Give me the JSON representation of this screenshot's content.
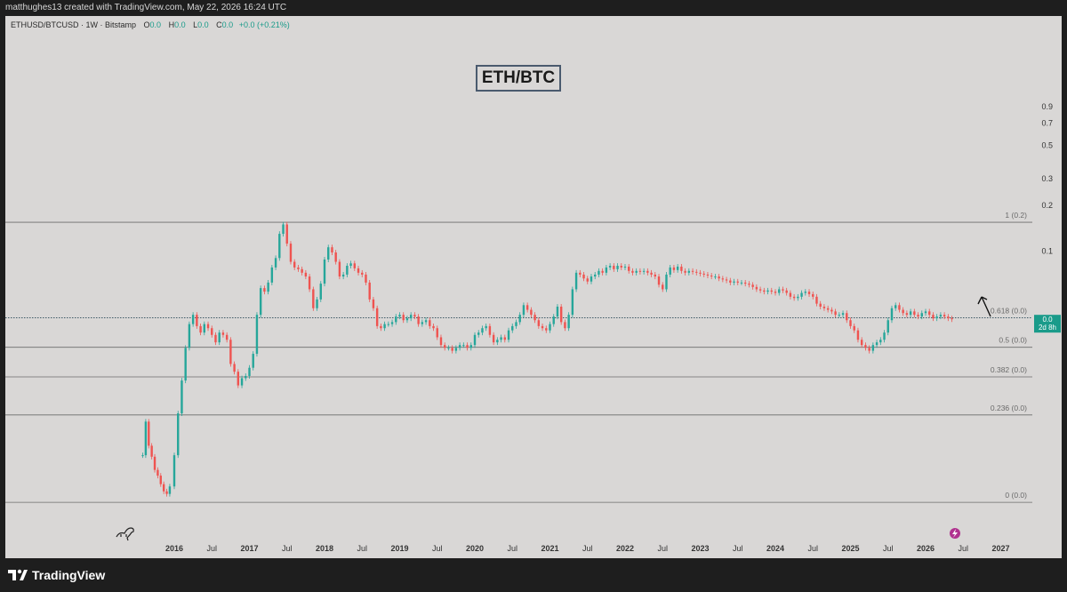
{
  "header": {
    "attribution": "matthughes13 created with TradingView.com, May 22, 2026 16:24 UTC"
  },
  "legend": {
    "symbol": "ETHUSD/BTCUSD · 1W · Bitstamp",
    "o_label": "O",
    "o_value": "0.0",
    "h_label": "H",
    "h_value": "0.0",
    "l_label": "L",
    "l_value": "0.0",
    "c_label": "C",
    "c_value": "0.0",
    "change": "+0.0 (+0.21%)"
  },
  "title_box": {
    "text": "ETH/BTC"
  },
  "footer": {
    "brand": "TradingView"
  },
  "icons": {
    "logo": "tradingview-logo-icon",
    "dino": "dinosaur-icon",
    "bolt": "lightning-icon",
    "arrow": "hand-drawn-arrow-icon"
  },
  "colors": {
    "background": "#d9d7d6",
    "up": "#26a69a",
    "down": "#ef5350",
    "fib_line": "#6b6b6b",
    "price_badge": "#1a9b8a",
    "frame": "#1e1e1e"
  },
  "chart_data": {
    "type": "candlestick",
    "title": "ETH/BTC",
    "xlabel": "",
    "ylabel": "",
    "y_scale": "log",
    "x_tick_labels": [
      "2016",
      "Jul",
      "2017",
      "Jul",
      "2018",
      "Jul",
      "2019",
      "Jul",
      "2020",
      "Jul",
      "2021",
      "Jul",
      "2022",
      "Jul",
      "2023",
      "Jul",
      "2024",
      "Jul",
      "2025",
      "Jul",
      "2026",
      "Jul",
      "2027"
    ],
    "x_ticks": [
      2016.0,
      2016.5,
      2017.0,
      2017.5,
      2018.0,
      2018.5,
      2019.0,
      2019.5,
      2020.0,
      2020.5,
      2021.0,
      2021.5,
      2022.0,
      2022.5,
      2023.0,
      2023.5,
      2024.0,
      2024.5,
      2025.0,
      2025.5,
      2026.0,
      2026.5,
      2027.0
    ],
    "y_tick_labels": [
      "0.9",
      "0.7",
      "0.5",
      "0.3",
      "0.2",
      "0.1"
    ],
    "y_ticks": [
      0.9,
      0.7,
      0.5,
      0.3,
      0.2,
      0.1
    ],
    "fib_levels": [
      {
        "label": "1 (0.2)",
        "value": 0.155
      },
      {
        "label": "0.618 (0.0)",
        "value": 0.0363
      },
      {
        "label": "0.5 (0.0)",
        "value": 0.0232
      },
      {
        "label": "0.382 (0.0)",
        "value": 0.0148
      },
      {
        "label": "0.236 (0.0)",
        "value": 0.0083
      },
      {
        "label": "0 (0.0)",
        "value": 0.0022
      }
    ],
    "last_price": {
      "label": "0.0",
      "countdown": "2d 8h",
      "value": 0.0355
    },
    "series": [
      {
        "name": "ETHUSD/BTCUSD",
        "points": [
          [
            2015.58,
            0.0045
          ],
          [
            2015.62,
            0.0075
          ],
          [
            2015.66,
            0.0052
          ],
          [
            2015.7,
            0.0044
          ],
          [
            2015.74,
            0.0036
          ],
          [
            2015.78,
            0.0033
          ],
          [
            2015.82,
            0.0029
          ],
          [
            2015.86,
            0.0026
          ],
          [
            2015.9,
            0.0025
          ],
          [
            2015.94,
            0.0028
          ],
          [
            2016.0,
            0.0045
          ],
          [
            2016.05,
            0.0085
          ],
          [
            2016.1,
            0.014
          ],
          [
            2016.15,
            0.023
          ],
          [
            2016.2,
            0.033
          ],
          [
            2016.25,
            0.038
          ],
          [
            2016.3,
            0.032
          ],
          [
            2016.35,
            0.029
          ],
          [
            2016.4,
            0.033
          ],
          [
            2016.45,
            0.031
          ],
          [
            2016.5,
            0.028
          ],
          [
            2016.55,
            0.025
          ],
          [
            2016.6,
            0.029
          ],
          [
            2016.65,
            0.028
          ],
          [
            2016.7,
            0.026
          ],
          [
            2016.75,
            0.018
          ],
          [
            2016.8,
            0.016
          ],
          [
            2016.85,
            0.013
          ],
          [
            2016.9,
            0.0145
          ],
          [
            2016.95,
            0.015
          ],
          [
            2017.0,
            0.017
          ],
          [
            2017.05,
            0.021
          ],
          [
            2017.1,
            0.038
          ],
          [
            2017.15,
            0.057
          ],
          [
            2017.2,
            0.054
          ],
          [
            2017.25,
            0.062
          ],
          [
            2017.3,
            0.078
          ],
          [
            2017.35,
            0.09
          ],
          [
            2017.4,
            0.13
          ],
          [
            2017.45,
            0.15
          ],
          [
            2017.5,
            0.112
          ],
          [
            2017.55,
            0.085
          ],
          [
            2017.6,
            0.078
          ],
          [
            2017.65,
            0.076
          ],
          [
            2017.7,
            0.072
          ],
          [
            2017.75,
            0.068
          ],
          [
            2017.8,
            0.056
          ],
          [
            2017.85,
            0.042
          ],
          [
            2017.9,
            0.048
          ],
          [
            2017.95,
            0.061
          ],
          [
            2018.0,
            0.088
          ],
          [
            2018.05,
            0.106
          ],
          [
            2018.1,
            0.098
          ],
          [
            2018.15,
            0.085
          ],
          [
            2018.2,
            0.068
          ],
          [
            2018.25,
            0.07
          ],
          [
            2018.3,
            0.08
          ],
          [
            2018.35,
            0.083
          ],
          [
            2018.4,
            0.077
          ],
          [
            2018.45,
            0.072
          ],
          [
            2018.5,
            0.07
          ],
          [
            2018.55,
            0.062
          ],
          [
            2018.6,
            0.048
          ],
          [
            2018.65,
            0.042
          ],
          [
            2018.7,
            0.032
          ],
          [
            2018.75,
            0.031
          ],
          [
            2018.8,
            0.033
          ],
          [
            2018.85,
            0.033
          ],
          [
            2018.9,
            0.034
          ],
          [
            2018.95,
            0.037
          ],
          [
            2019.0,
            0.038
          ],
          [
            2019.05,
            0.035
          ],
          [
            2019.1,
            0.036
          ],
          [
            2019.15,
            0.038
          ],
          [
            2019.2,
            0.037
          ],
          [
            2019.25,
            0.033
          ],
          [
            2019.3,
            0.034
          ],
          [
            2019.35,
            0.035
          ],
          [
            2019.4,
            0.032
          ],
          [
            2019.45,
            0.031
          ],
          [
            2019.5,
            0.027
          ],
          [
            2019.55,
            0.024
          ],
          [
            2019.6,
            0.023
          ],
          [
            2019.65,
            0.023
          ],
          [
            2019.7,
            0.022
          ],
          [
            2019.75,
            0.023
          ],
          [
            2019.8,
            0.024
          ],
          [
            2019.85,
            0.024
          ],
          [
            2019.9,
            0.023
          ],
          [
            2019.95,
            0.024
          ],
          [
            2020.0,
            0.028
          ],
          [
            2020.05,
            0.029
          ],
          [
            2020.1,
            0.031
          ],
          [
            2020.15,
            0.032
          ],
          [
            2020.2,
            0.028
          ],
          [
            2020.25,
            0.025
          ],
          [
            2020.3,
            0.026
          ],
          [
            2020.35,
            0.027
          ],
          [
            2020.4,
            0.026
          ],
          [
            2020.45,
            0.03
          ],
          [
            2020.5,
            0.032
          ],
          [
            2020.55,
            0.034
          ],
          [
            2020.6,
            0.038
          ],
          [
            2020.65,
            0.044
          ],
          [
            2020.7,
            0.041
          ],
          [
            2020.75,
            0.038
          ],
          [
            2020.8,
            0.035
          ],
          [
            2020.85,
            0.032
          ],
          [
            2020.9,
            0.031
          ],
          [
            2020.95,
            0.03
          ],
          [
            2021.0,
            0.033
          ],
          [
            2021.05,
            0.037
          ],
          [
            2021.1,
            0.043
          ],
          [
            2021.15,
            0.034
          ],
          [
            2021.2,
            0.031
          ],
          [
            2021.25,
            0.038
          ],
          [
            2021.3,
            0.056
          ],
          [
            2021.35,
            0.072
          ],
          [
            2021.4,
            0.07
          ],
          [
            2021.45,
            0.066
          ],
          [
            2021.5,
            0.063
          ],
          [
            2021.55,
            0.068
          ],
          [
            2021.6,
            0.07
          ],
          [
            2021.65,
            0.074
          ],
          [
            2021.7,
            0.072
          ],
          [
            2021.75,
            0.078
          ],
          [
            2021.8,
            0.08
          ],
          [
            2021.85,
            0.076
          ],
          [
            2021.9,
            0.08
          ],
          [
            2021.95,
            0.078
          ],
          [
            2022.0,
            0.079
          ],
          [
            2022.05,
            0.074
          ],
          [
            2022.1,
            0.072
          ],
          [
            2022.15,
            0.074
          ],
          [
            2022.2,
            0.073
          ],
          [
            2022.25,
            0.074
          ],
          [
            2022.3,
            0.072
          ],
          [
            2022.35,
            0.07
          ],
          [
            2022.4,
            0.068
          ],
          [
            2022.45,
            0.06
          ],
          [
            2022.5,
            0.056
          ],
          [
            2022.55,
            0.07
          ],
          [
            2022.6,
            0.078
          ],
          [
            2022.65,
            0.075
          ],
          [
            2022.7,
            0.079
          ],
          [
            2022.75,
            0.074
          ],
          [
            2022.8,
            0.072
          ],
          [
            2022.85,
            0.074
          ],
          [
            2022.9,
            0.073
          ],
          [
            2022.95,
            0.072
          ],
          [
            2023.0,
            0.071
          ],
          [
            2023.05,
            0.07
          ],
          [
            2023.1,
            0.069
          ],
          [
            2023.15,
            0.068
          ],
          [
            2023.2,
            0.068
          ],
          [
            2023.25,
            0.066
          ],
          [
            2023.3,
            0.065
          ],
          [
            2023.35,
            0.064
          ],
          [
            2023.4,
            0.062
          ],
          [
            2023.45,
            0.063
          ],
          [
            2023.5,
            0.062
          ],
          [
            2023.55,
            0.062
          ],
          [
            2023.6,
            0.061
          ],
          [
            2023.65,
            0.06
          ],
          [
            2023.7,
            0.058
          ],
          [
            2023.75,
            0.056
          ],
          [
            2023.8,
            0.055
          ],
          [
            2023.85,
            0.054
          ],
          [
            2023.9,
            0.055
          ],
          [
            2023.95,
            0.054
          ],
          [
            2024.0,
            0.053
          ],
          [
            2024.05,
            0.056
          ],
          [
            2024.1,
            0.055
          ],
          [
            2024.15,
            0.053
          ],
          [
            2024.2,
            0.05
          ],
          [
            2024.25,
            0.049
          ],
          [
            2024.3,
            0.05
          ],
          [
            2024.35,
            0.053
          ],
          [
            2024.4,
            0.054
          ],
          [
            2024.45,
            0.052
          ],
          [
            2024.5,
            0.05
          ],
          [
            2024.55,
            0.045
          ],
          [
            2024.6,
            0.043
          ],
          [
            2024.65,
            0.042
          ],
          [
            2024.7,
            0.041
          ],
          [
            2024.75,
            0.04
          ],
          [
            2024.8,
            0.038
          ],
          [
            2024.85,
            0.038
          ],
          [
            2024.9,
            0.039
          ],
          [
            2024.95,
            0.035
          ],
          [
            2025.0,
            0.032
          ],
          [
            2025.05,
            0.03
          ],
          [
            2025.1,
            0.026
          ],
          [
            2025.15,
            0.024
          ],
          [
            2025.2,
            0.023
          ],
          [
            2025.25,
            0.022
          ],
          [
            2025.3,
            0.024
          ],
          [
            2025.35,
            0.025
          ],
          [
            2025.4,
            0.026
          ],
          [
            2025.45,
            0.029
          ],
          [
            2025.5,
            0.035
          ],
          [
            2025.55,
            0.042
          ],
          [
            2025.6,
            0.044
          ],
          [
            2025.65,
            0.041
          ],
          [
            2025.7,
            0.039
          ],
          [
            2025.75,
            0.038
          ],
          [
            2025.8,
            0.04
          ],
          [
            2025.85,
            0.038
          ],
          [
            2025.9,
            0.037
          ],
          [
            2025.95,
            0.039
          ],
          [
            2026.0,
            0.04
          ],
          [
            2026.05,
            0.038
          ],
          [
            2026.1,
            0.036
          ],
          [
            2026.15,
            0.037
          ],
          [
            2026.2,
            0.038
          ],
          [
            2026.25,
            0.037
          ],
          [
            2026.3,
            0.036
          ],
          [
            2026.35,
            0.0355
          ]
        ]
      }
    ],
    "grid": false
  }
}
